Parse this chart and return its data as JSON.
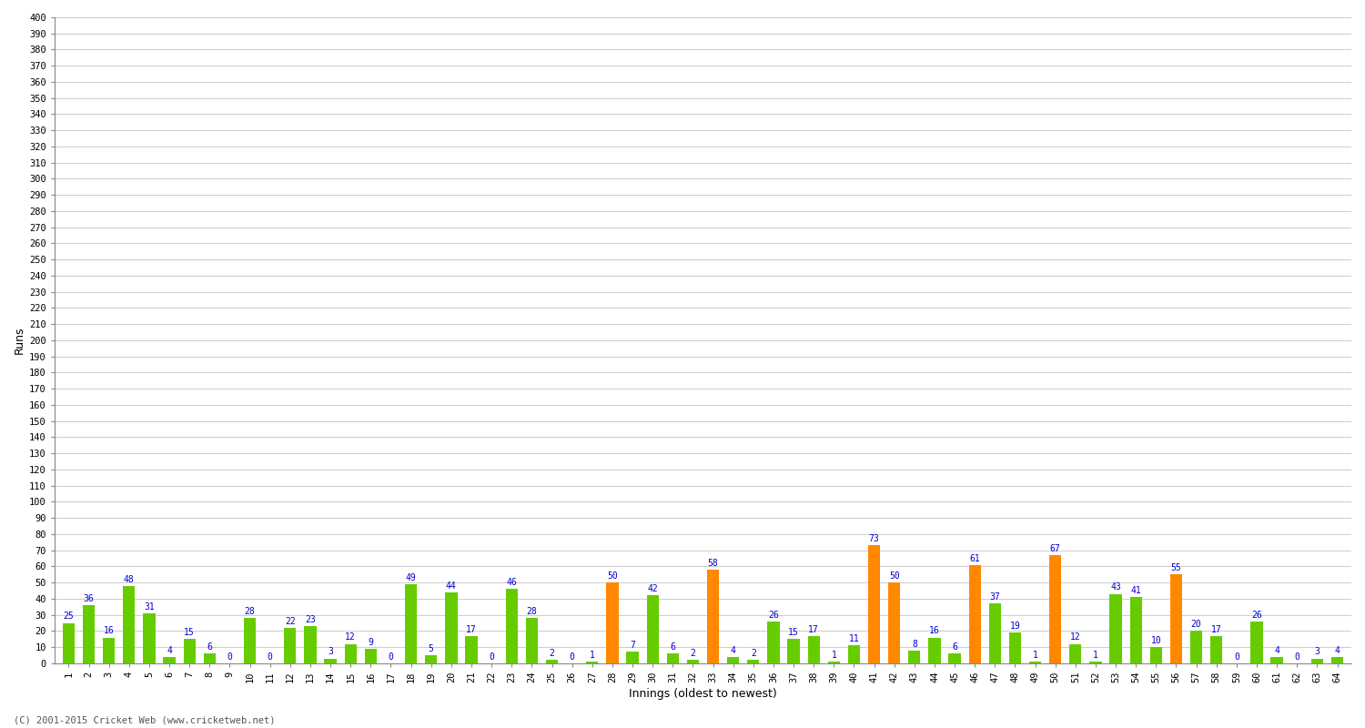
{
  "innings": [
    1,
    2,
    3,
    4,
    5,
    6,
    7,
    8,
    9,
    10,
    11,
    12,
    13,
    14,
    15,
    16,
    17,
    18,
    19,
    20,
    21,
    22,
    23,
    24,
    25,
    26,
    27,
    28,
    29,
    30,
    31,
    32,
    33,
    34,
    35,
    36,
    37,
    38,
    39,
    40,
    41,
    42,
    43,
    44,
    45,
    46,
    47,
    48,
    49,
    50,
    51,
    52,
    53,
    54,
    55,
    56,
    57,
    58,
    59,
    60,
    61,
    62,
    63,
    64
  ],
  "values": [
    25,
    36,
    16,
    48,
    31,
    4,
    15,
    6,
    0,
    28,
    0,
    22,
    23,
    3,
    12,
    9,
    0,
    49,
    5,
    44,
    17,
    0,
    46,
    28,
    2,
    0,
    1,
    50,
    7,
    42,
    6,
    2,
    58,
    4,
    2,
    26,
    15,
    17,
    1,
    11,
    73,
    50,
    8,
    16,
    6,
    61,
    37,
    19,
    1,
    67,
    12,
    1,
    43,
    41,
    10,
    55,
    20,
    17,
    0,
    26,
    4,
    0,
    3,
    4
  ],
  "colors": [
    "#66cc00",
    "#66cc00",
    "#66cc00",
    "#66cc00",
    "#66cc00",
    "#66cc00",
    "#66cc00",
    "#66cc00",
    "#66cc00",
    "#66cc00",
    "#66cc00",
    "#66cc00",
    "#66cc00",
    "#66cc00",
    "#66cc00",
    "#66cc00",
    "#66cc00",
    "#66cc00",
    "#66cc00",
    "#66cc00",
    "#66cc00",
    "#66cc00",
    "#66cc00",
    "#66cc00",
    "#66cc00",
    "#66cc00",
    "#66cc00",
    "#ff8800",
    "#66cc00",
    "#66cc00",
    "#66cc00",
    "#66cc00",
    "#ff8800",
    "#66cc00",
    "#66cc00",
    "#66cc00",
    "#66cc00",
    "#66cc00",
    "#66cc00",
    "#66cc00",
    "#ff8800",
    "#ff8800",
    "#66cc00",
    "#66cc00",
    "#66cc00",
    "#ff8800",
    "#66cc00",
    "#66cc00",
    "#66cc00",
    "#ff8800",
    "#66cc00",
    "#66cc00",
    "#66cc00",
    "#66cc00",
    "#66cc00",
    "#ff8800",
    "#66cc00",
    "#66cc00",
    "#66cc00",
    "#66cc00",
    "#66cc00",
    "#66cc00",
    "#66cc00",
    "#66cc00"
  ],
  "ylabel": "Runs",
  "xlabel": "Innings (oldest to newest)",
  "ylim": [
    0,
    400
  ],
  "ytick_step": 10,
  "bg_color": "#ffffff",
  "plot_bg_color": "#ffffff",
  "grid_color": "#cccccc",
  "label_color": "#0000cc",
  "tick_color": "#000000",
  "bar_width": 0.6,
  "footer": "(C) 2001-2015 Cricket Web (www.cricketweb.net)"
}
